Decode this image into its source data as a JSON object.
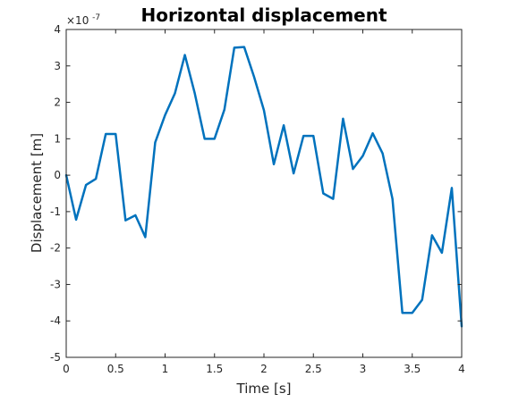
{
  "chart_data": {
    "type": "line",
    "title": "Horizontal displacement",
    "xlabel": "Time [s]",
    "ylabel": "Displacement [m]",
    "y_exponent_base": "×10",
    "y_exponent_power": "-7",
    "xlim": [
      0,
      4
    ],
    "ylim": [
      -5,
      4
    ],
    "xticks": [
      "0",
      "0.5",
      "1",
      "1.5",
      "2",
      "2.5",
      "3",
      "3.5",
      "4"
    ],
    "yticks": [
      "-5",
      "-4",
      "-3",
      "-2",
      "-1",
      "0",
      "1",
      "2",
      "3",
      "4"
    ],
    "grid": false,
    "box": true,
    "series": [
      {
        "color": "#0072bd",
        "x": [
          0,
          0.1,
          0.2,
          0.3,
          0.4,
          0.5,
          0.6,
          0.7,
          0.8,
          0.9,
          1.0,
          1.1,
          1.2,
          1.3,
          1.4,
          1.5,
          1.6,
          1.7,
          1.8,
          1.9,
          2.0,
          2.1,
          2.2,
          2.3,
          2.4,
          2.5,
          2.6,
          2.7,
          2.8,
          2.9,
          3.0,
          3.1,
          3.2,
          3.3,
          3.4,
          3.5,
          3.6,
          3.7,
          3.8,
          3.9,
          4.0
        ],
        "y": [
          0,
          -1.22,
          -0.27,
          -0.1,
          1.13,
          1.13,
          -1.24,
          -1.1,
          -1.7,
          0.9,
          1.65,
          2.25,
          3.3,
          2.25,
          1.0,
          1.0,
          1.8,
          3.5,
          3.52,
          2.7,
          1.78,
          0.3,
          1.37,
          0.05,
          1.08,
          1.08,
          -0.5,
          -0.65,
          1.55,
          0.17,
          0.53,
          1.15,
          0.6,
          -0.65,
          -3.78,
          -3.78,
          -3.42,
          -1.65,
          -2.13,
          -0.35,
          -4.15
        ]
      }
    ]
  }
}
